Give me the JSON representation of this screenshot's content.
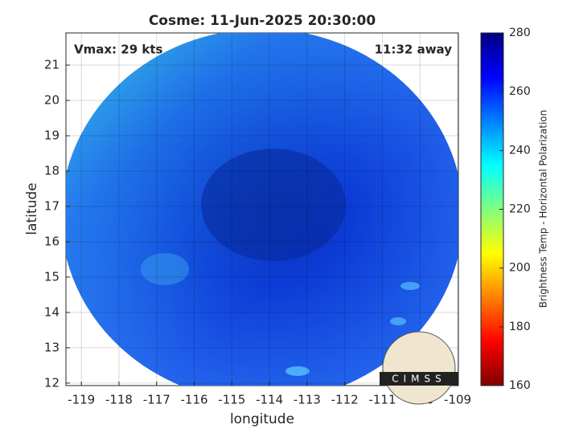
{
  "chart_data": {
    "type": "image-map",
    "title": "Cosme: 11-Jun-2025 20:30:00",
    "xlabel": "longitude",
    "ylabel": "latitude",
    "xlim": [
      -119.41,
      -108.98
    ],
    "ylim": [
      11.93,
      21.91
    ],
    "xticks": [
      -119,
      -118,
      -117,
      -116,
      -115,
      -114,
      -113,
      -112,
      -111,
      -110,
      -109
    ],
    "yticks": [
      12,
      13,
      14,
      15,
      16,
      17,
      18,
      19,
      20,
      21
    ],
    "grid": true,
    "annotations": [
      "Vmax: 29 kts",
      "11:32 away"
    ],
    "logo": "CIMSS",
    "colorbar": {
      "label": "Brightness Temp - Horizontal Polarization",
      "lim": [
        160,
        280
      ],
      "ticks": [
        160,
        180,
        200,
        220,
        240,
        260,
        280
      ],
      "colors": [
        "#800000",
        "#ff0000",
        "#ff8000",
        "#ffff00",
        "#80ff80",
        "#00ffff",
        "#0080ff",
        "#0000ff",
        "#000080"
      ]
    }
  }
}
